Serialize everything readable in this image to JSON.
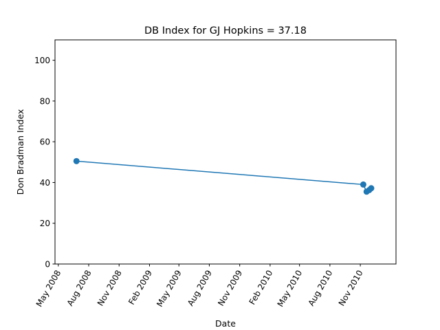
{
  "chart_data": {
    "type": "line",
    "title": "DB Index for GJ Hopkins = 37.18",
    "xlabel": "Date",
    "ylabel": "Don Bradman Index",
    "xlim": [
      "2008-04-21",
      "2011-02-17"
    ],
    "ylim": [
      0,
      110
    ],
    "x_tick_dates": [
      "2008-05-01",
      "2008-08-01",
      "2008-11-01",
      "2009-02-01",
      "2009-05-01",
      "2009-08-01",
      "2009-11-01",
      "2010-02-01",
      "2010-05-01",
      "2010-08-01",
      "2010-11-01"
    ],
    "x_tick_labels": [
      "May 2008",
      "Aug 2008",
      "Nov 2008",
      "Feb 2009",
      "May 2009",
      "Aug 2009",
      "Nov 2009",
      "Feb 2010",
      "May 2010",
      "Aug 2010",
      "Nov 2010"
    ],
    "y_ticks": [
      0,
      20,
      40,
      60,
      80,
      100
    ],
    "grid": false,
    "series": [
      {
        "color": "#1f77b4",
        "marker": "circle",
        "points": [
          {
            "x": "2008-06-25",
            "y": 50.5
          },
          {
            "x": "2010-11-10",
            "y": 39.0
          },
          {
            "x": "2010-11-20",
            "y": 35.5
          },
          {
            "x": "2010-11-28",
            "y": 36.3
          },
          {
            "x": "2010-12-04",
            "y": 37.18
          }
        ]
      }
    ]
  }
}
